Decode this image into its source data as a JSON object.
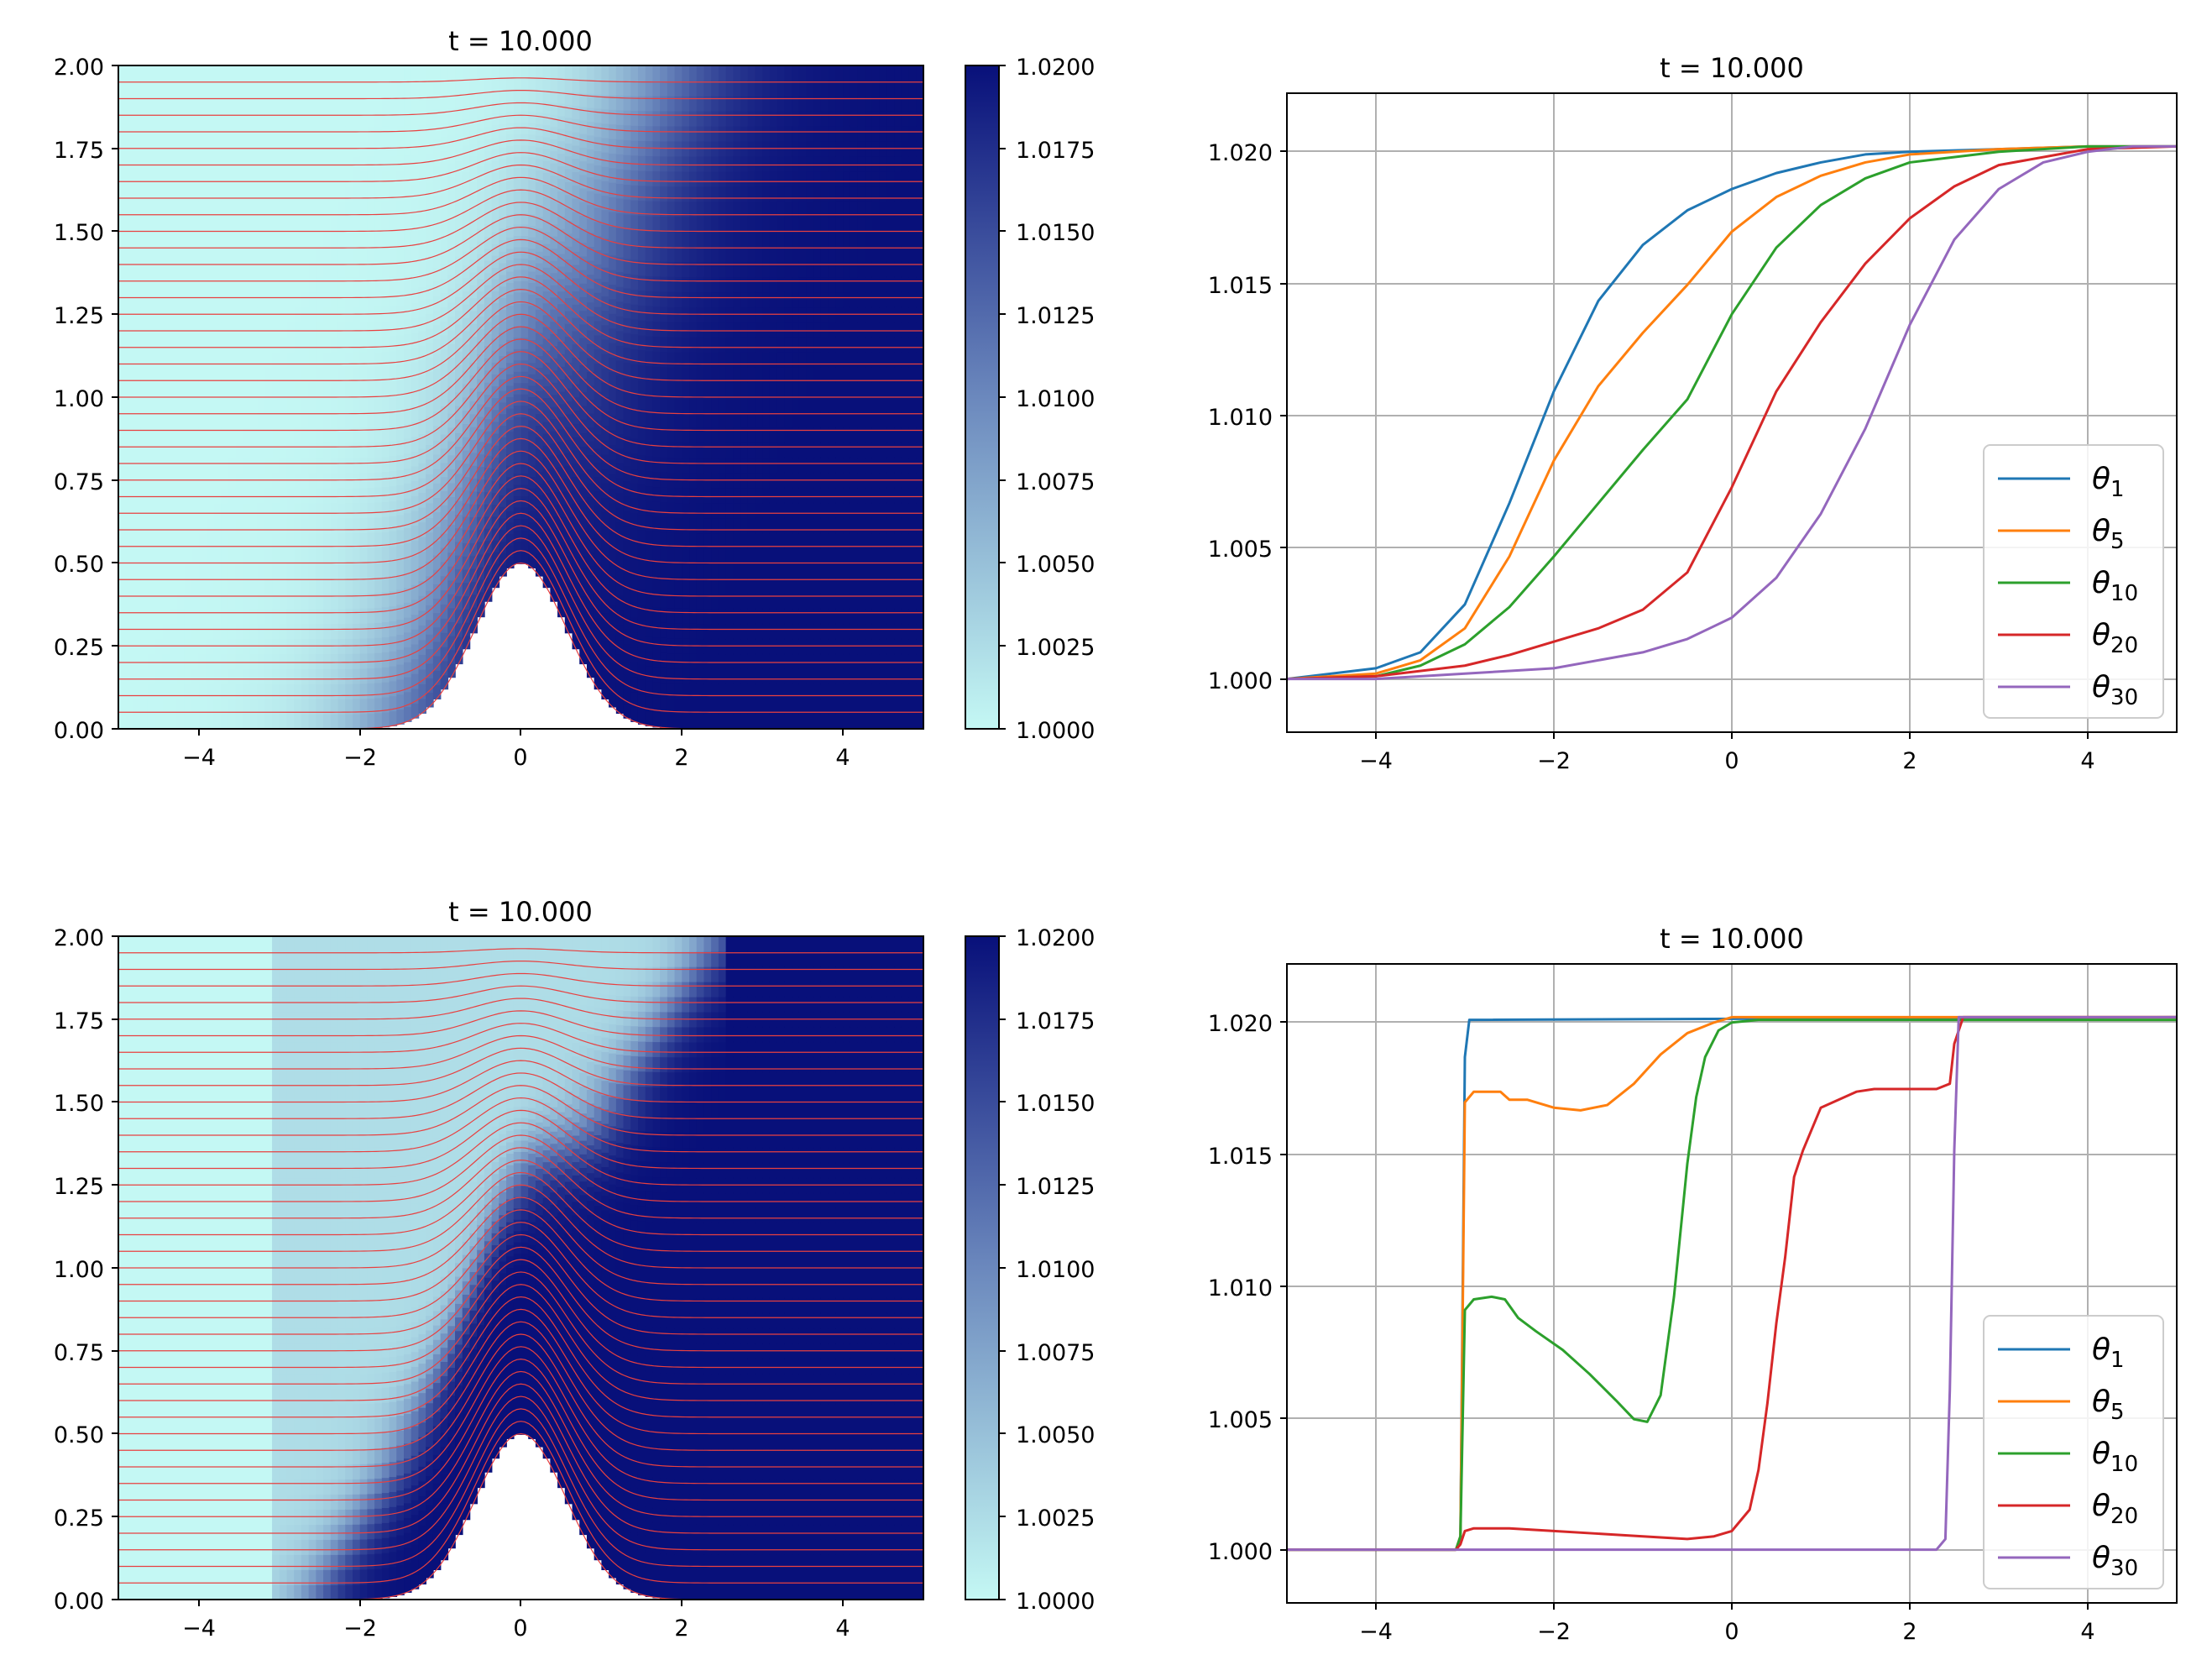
{
  "colors": {
    "cmap_low": "#c4f8f4",
    "cmap_mid": "#6b88bd",
    "cmap_high": "#08107a",
    "contour": "#e84040",
    "grid": "#b0b0b0",
    "theta_1": "#1f77b4",
    "theta_5": "#ff7f0e",
    "theta_10": "#2ca02c",
    "theta_20": "#d62728",
    "theta_30": "#9467bd"
  },
  "chart_data": [
    {
      "id": "top-left",
      "type": "heatmap",
      "title": "t = 10.000",
      "xlim": [
        -5,
        5
      ],
      "ylim": [
        0,
        2
      ],
      "xticks": [
        "−4",
        "−2",
        "0",
        "2",
        "4"
      ],
      "xtick_values": [
        -4,
        -2,
        0,
        2,
        4
      ],
      "yticks": [
        "0.00",
        "0.25",
        "0.50",
        "0.75",
        "1.00",
        "1.25",
        "1.50",
        "1.75",
        "2.00"
      ],
      "ytick_values": [
        0,
        0.25,
        0.5,
        0.75,
        1.0,
        1.25,
        1.5,
        1.75,
        2.0
      ],
      "bottom_topography": {
        "shape": "gaussian",
        "amplitude": 0.5,
        "center": 0,
        "width": 0.8
      },
      "layer_count": 40,
      "color_field": "smooth front between x = -3 and x = 2.4, steeper near the bump",
      "colorbar": {
        "range": [
          1.0,
          1.02
        ],
        "ticks": [
          "1.0000",
          "1.0025",
          "1.0050",
          "1.0075",
          "1.0100",
          "1.0125",
          "1.0150",
          "1.0175",
          "1.0200"
        ]
      }
    },
    {
      "id": "top-right",
      "type": "line",
      "title": "t = 10.000",
      "xlim": [
        -5,
        5
      ],
      "ylim": [
        0.998,
        1.022
      ],
      "xticks": [
        "−4",
        "−2",
        "0",
        "2",
        "4"
      ],
      "xtick_values": [
        -4,
        -2,
        0,
        2,
        4
      ],
      "yticks": [
        "1.000",
        "1.005",
        "1.010",
        "1.015",
        "1.020"
      ],
      "ytick_values": [
        1.0,
        1.005,
        1.01,
        1.015,
        1.02
      ],
      "grid": true,
      "legend": "lower-right",
      "series": [
        {
          "name": "θ1",
          "sub": "1",
          "color_key": "theta_1",
          "x": [
            -5,
            -4,
            -3.5,
            -3,
            -2.5,
            -2,
            -1.5,
            -1,
            -0.5,
            0,
            0.5,
            1,
            1.5,
            2,
            3,
            4,
            5
          ],
          "values": [
            1.0,
            1.0004,
            1.001,
            1.0028,
            1.0066,
            1.0108,
            1.0142,
            1.0163,
            1.0176,
            1.0184,
            1.019,
            1.0194,
            1.0197,
            1.0198,
            1.0199,
            1.02,
            1.02
          ]
        },
        {
          "name": "θ5",
          "sub": "5",
          "color_key": "theta_5",
          "x": [
            -5,
            -4,
            -3.5,
            -3,
            -2.5,
            -2,
            -1.5,
            -1,
            -0.5,
            0,
            0.5,
            1,
            1.5,
            2,
            3,
            4,
            5
          ],
          "values": [
            1.0,
            1.0002,
            1.0007,
            1.0019,
            1.0046,
            1.0082,
            1.011,
            1.013,
            1.0148,
            1.0168,
            1.0181,
            1.0189,
            1.0194,
            1.0197,
            1.0199,
            1.02,
            1.02
          ]
        },
        {
          "name": "θ10",
          "sub": "10",
          "color_key": "theta_10",
          "x": [
            -5,
            -4,
            -3.5,
            -3,
            -2.5,
            -2,
            -1.5,
            -1,
            -0.5,
            0,
            0.5,
            1,
            1.5,
            2,
            3,
            4,
            5
          ],
          "values": [
            1.0,
            1.0001,
            1.0005,
            1.0013,
            1.0027,
            1.0046,
            1.0066,
            1.0086,
            1.0105,
            1.0137,
            1.0162,
            1.0178,
            1.0188,
            1.0194,
            1.0198,
            1.02,
            1.02
          ]
        },
        {
          "name": "θ20",
          "sub": "20",
          "color_key": "theta_20",
          "x": [
            -5,
            -4,
            -3,
            -2.5,
            -2,
            -1.5,
            -1,
            -0.5,
            0,
            0.5,
            1,
            1.5,
            2,
            2.5,
            3,
            4,
            5
          ],
          "values": [
            1.0,
            1.0001,
            1.0005,
            1.0009,
            1.0014,
            1.0019,
            1.0026,
            1.004,
            1.0072,
            1.0108,
            1.0134,
            1.0156,
            1.0173,
            1.0185,
            1.0193,
            1.0199,
            1.02
          ]
        },
        {
          "name": "θ30",
          "sub": "30",
          "color_key": "theta_30",
          "x": [
            -5,
            -4,
            -3,
            -2,
            -1,
            -0.5,
            0,
            0.5,
            1,
            1.5,
            2,
            2.5,
            3,
            3.5,
            4,
            4.5,
            5
          ],
          "values": [
            1.0,
            1.0,
            1.0002,
            1.0004,
            1.001,
            1.0015,
            1.0023,
            1.0038,
            1.0062,
            1.0094,
            1.0133,
            1.0165,
            1.0184,
            1.0194,
            1.0198,
            1.02,
            1.02
          ]
        }
      ]
    },
    {
      "id": "bottom-left",
      "type": "heatmap",
      "title": "t = 10.000",
      "xlim": [
        -5,
        5
      ],
      "ylim": [
        0,
        2
      ],
      "xticks": [
        "−4",
        "−2",
        "0",
        "2",
        "4"
      ],
      "xtick_values": [
        -4,
        -2,
        0,
        2,
        4
      ],
      "yticks": [
        "0.00",
        "0.25",
        "0.50",
        "0.75",
        "1.00",
        "1.25",
        "1.50",
        "1.75",
        "2.00"
      ],
      "ytick_values": [
        0,
        0.25,
        0.5,
        0.75,
        1.0,
        1.25,
        1.5,
        1.75,
        2.0
      ],
      "bottom_topography": {
        "shape": "gaussian",
        "amplitude": 0.5,
        "center": 0,
        "width": 0.8
      },
      "layer_count": 40,
      "color_field": "sharp fronts at x = -3.05 and x = 2.5 with an interior diagonal front over the bump",
      "colorbar": {
        "range": [
          1.0,
          1.02
        ],
        "ticks": [
          "1.0000",
          "1.0025",
          "1.0050",
          "1.0075",
          "1.0100",
          "1.0125",
          "1.0150",
          "1.0175",
          "1.0200"
        ]
      }
    },
    {
      "id": "bottom-right",
      "type": "line",
      "title": "t = 10.000",
      "xlim": [
        -5,
        5
      ],
      "ylim": [
        0.998,
        1.022
      ],
      "xticks": [
        "−4",
        "−2",
        "0",
        "2",
        "4"
      ],
      "xtick_values": [
        -4,
        -2,
        0,
        2,
        4
      ],
      "yticks": [
        "1.000",
        "1.005",
        "1.010",
        "1.015",
        "1.020"
      ],
      "ytick_values": [
        1.0,
        1.005,
        1.01,
        1.015,
        1.02
      ],
      "grid": true,
      "legend": "lower-right",
      "series": [
        {
          "name": "θ1",
          "sub": "1",
          "color_key": "theta_1",
          "x": [
            -5,
            -3.1,
            -3.05,
            -3.0,
            -2.95,
            5
          ],
          "values": [
            1.0,
            1.0,
            1.0005,
            1.0185,
            1.0199,
            1.02
          ]
        },
        {
          "name": "θ5",
          "sub": "5",
          "color_key": "theta_5",
          "x": [
            -5,
            -3.1,
            -3.05,
            -3.0,
            -2.9,
            -2.6,
            -2.5,
            -2.3,
            -2.0,
            -1.7,
            -1.4,
            -1.1,
            -0.8,
            -0.5,
            -0.2,
            0,
            0.5,
            5
          ],
          "values": [
            1.0,
            1.0,
            1.0005,
            1.0168,
            1.0172,
            1.0172,
            1.0169,
            1.0169,
            1.0166,
            1.0165,
            1.0167,
            1.0175,
            1.0186,
            1.0194,
            1.0198,
            1.02,
            1.02,
            1.02
          ]
        },
        {
          "name": "θ10",
          "sub": "10",
          "color_key": "theta_10",
          "x": [
            -5,
            -3.1,
            -3.05,
            -3.0,
            -2.9,
            -2.7,
            -2.55,
            -2.4,
            -2.2,
            -1.9,
            -1.6,
            -1.3,
            -1.1,
            -0.95,
            -0.8,
            -0.65,
            -0.5,
            -0.4,
            -0.3,
            -0.15,
            0,
            0.3,
            5
          ],
          "values": [
            1.0,
            1.0,
            1.0005,
            1.009,
            1.0094,
            1.0095,
            1.0094,
            1.0087,
            1.0082,
            1.0075,
            1.0066,
            1.0056,
            1.0049,
            1.0048,
            1.0058,
            1.0095,
            1.0145,
            1.017,
            1.0185,
            1.0195,
            1.0198,
            1.0199,
            1.0199
          ]
        },
        {
          "name": "θ20",
          "sub": "20",
          "color_key": "theta_20",
          "x": [
            -5,
            -3.1,
            -3.05,
            -3.0,
            -2.9,
            -2.5,
            -2.0,
            -1.5,
            -1.0,
            -0.5,
            -0.2,
            0,
            0.2,
            0.3,
            0.4,
            0.5,
            0.6,
            0.7,
            0.8,
            0.9,
            1.0,
            1.2,
            1.4,
            1.6,
            2.0,
            2.3,
            2.45,
            2.5,
            2.6,
            5
          ],
          "values": [
            1.0,
            1.0,
            1.0002,
            1.0007,
            1.0008,
            1.0008,
            1.0007,
            1.0006,
            1.0005,
            1.0004,
            1.0005,
            1.0007,
            1.0015,
            1.003,
            1.0055,
            1.0085,
            1.011,
            1.014,
            1.015,
            1.0158,
            1.0166,
            1.0169,
            1.0172,
            1.0173,
            1.0173,
            1.0173,
            1.0175,
            1.019,
            1.02,
            1.02
          ]
        },
        {
          "name": "θ30",
          "sub": "30",
          "color_key": "theta_30",
          "x": [
            -5,
            2.3,
            2.4,
            2.45,
            2.5,
            2.55,
            5
          ],
          "values": [
            1.0,
            1.0,
            1.0004,
            1.006,
            1.015,
            1.02,
            1.02
          ]
        }
      ]
    }
  ]
}
